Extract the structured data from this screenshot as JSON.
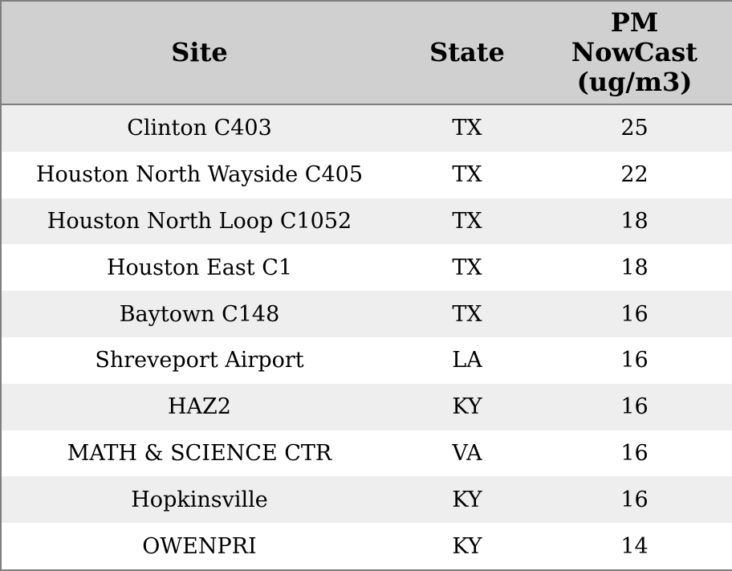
{
  "chart_data": {
    "type": "table",
    "title": "",
    "columns": [
      {
        "key": "site",
        "label": "Site"
      },
      {
        "key": "state",
        "label": "State"
      },
      {
        "key": "pm_nowcast",
        "label": "PM\nNowCast\n(ug/m3)"
      }
    ],
    "rows": [
      {
        "site": "Clinton C403",
        "state": "TX",
        "pm_nowcast": 25
      },
      {
        "site": "Houston North Wayside C405",
        "state": "TX",
        "pm_nowcast": 22
      },
      {
        "site": "Houston North Loop C1052",
        "state": "TX",
        "pm_nowcast": 18
      },
      {
        "site": "Houston East C1",
        "state": "TX",
        "pm_nowcast": 18
      },
      {
        "site": "Baytown C148",
        "state": "TX",
        "pm_nowcast": 16
      },
      {
        "site": "Shreveport Airport",
        "state": "LA",
        "pm_nowcast": 16
      },
      {
        "site": "HAZ2",
        "state": "KY",
        "pm_nowcast": 16
      },
      {
        "site": "MATH & SCIENCE CTR",
        "state": "VA",
        "pm_nowcast": 16
      },
      {
        "site": "Hopkinsville",
        "state": "KY",
        "pm_nowcast": 16
      },
      {
        "site": "OWENPRI",
        "state": "KY",
        "pm_nowcast": 14
      }
    ]
  },
  "colors": {
    "header_bg": "#d0d0d0",
    "stripe_bg": "#eeeeee",
    "row_bg": "#ffffff",
    "border": "#7f7f7f",
    "text": "#000000"
  }
}
